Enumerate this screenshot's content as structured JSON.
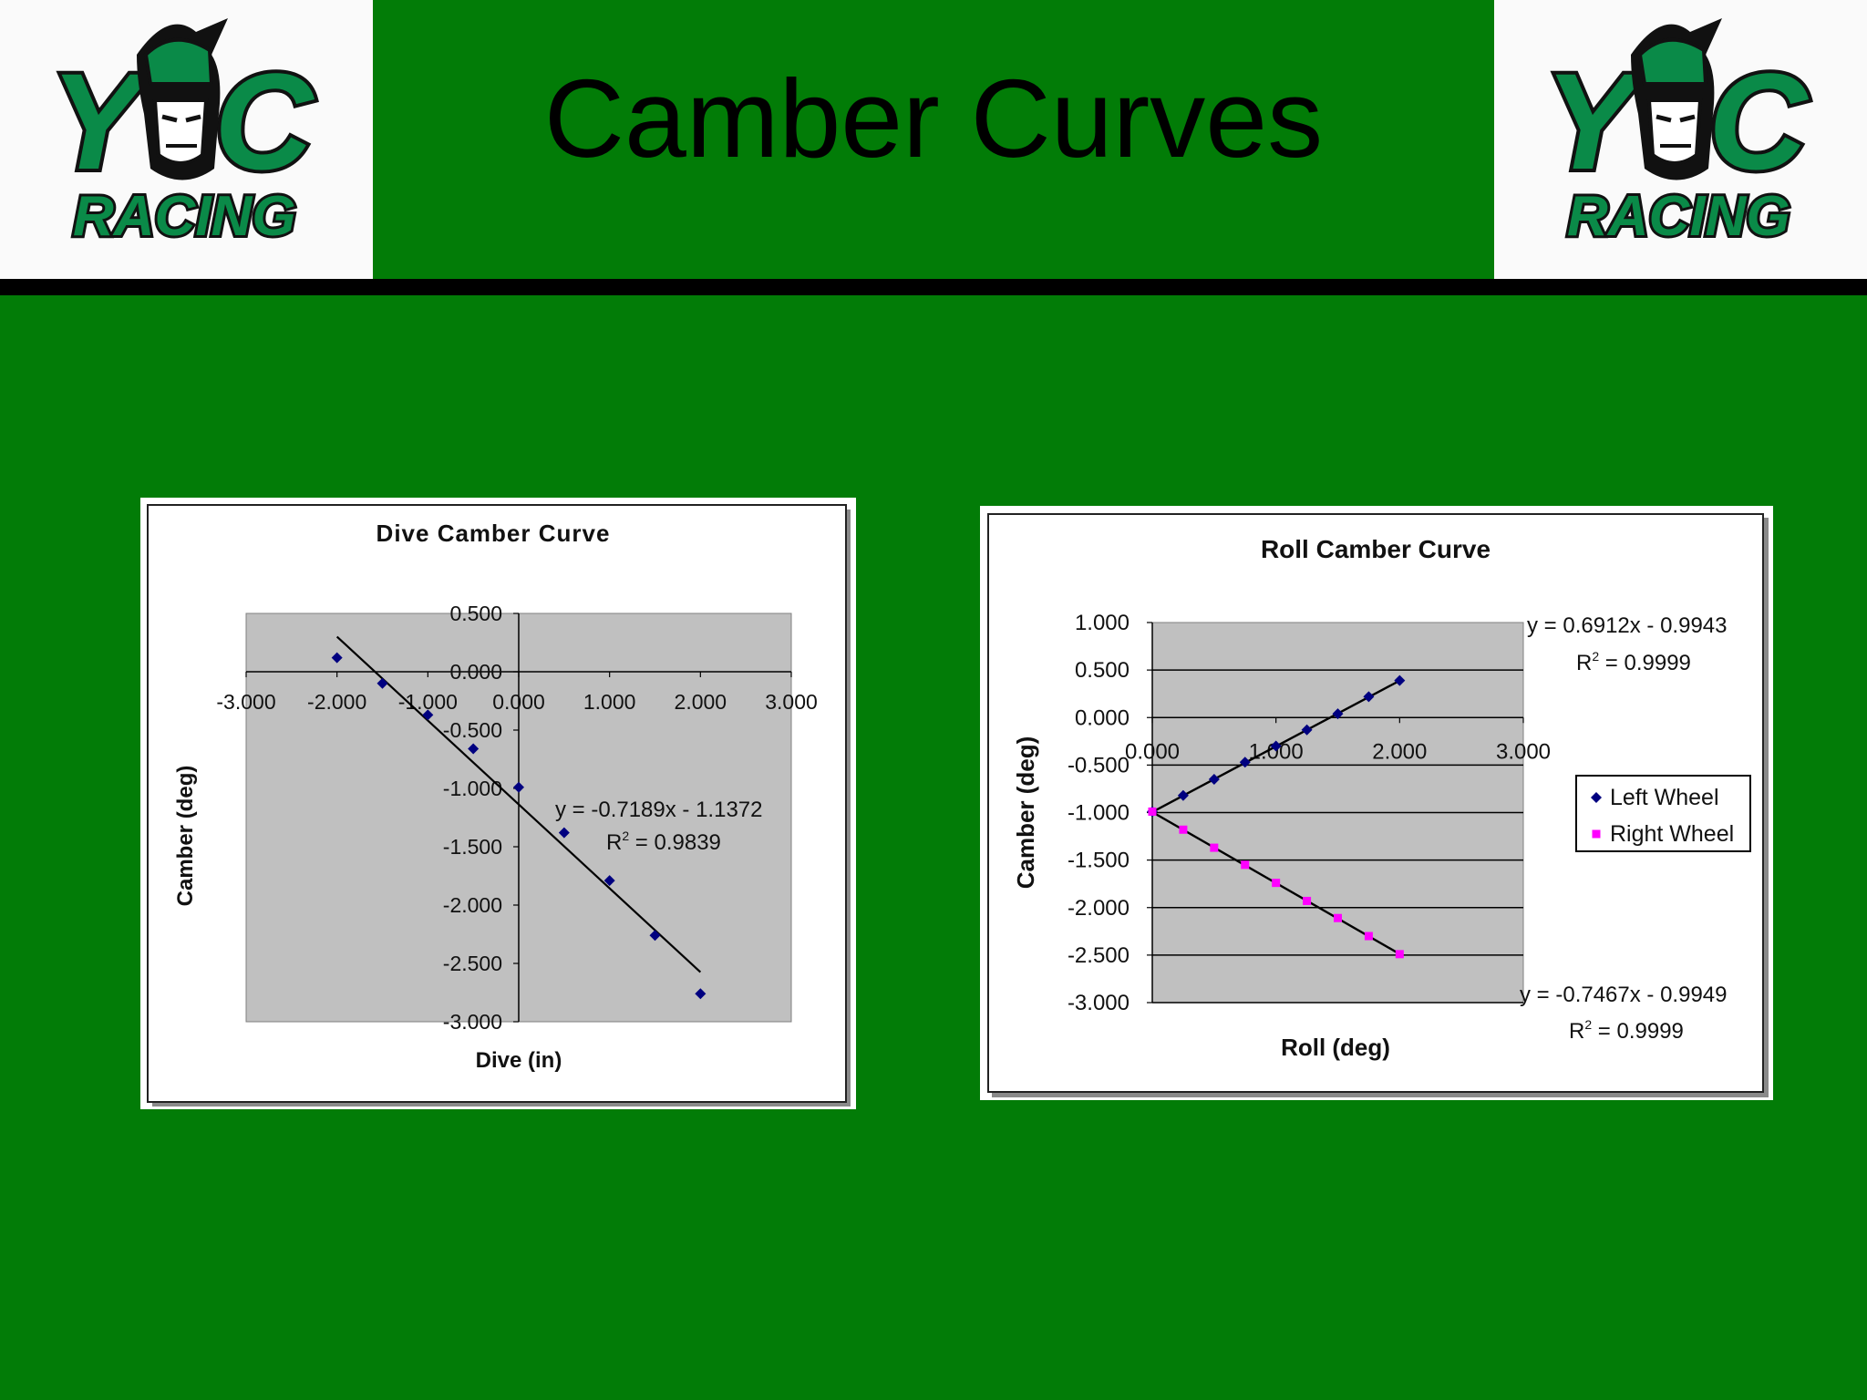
{
  "slide": {
    "title": "Camber Curves",
    "logo_left_text": [
      "Y",
      "C",
      "RACING"
    ],
    "logo_right_text": [
      "Y",
      "C",
      "RACING"
    ]
  },
  "colors": {
    "background": "#027C07",
    "logo_green": "#0A8A48",
    "plot_area": "#C0C0C0",
    "left_wheel": "#000080",
    "right_wheel": "#FF00FF"
  },
  "chart_data": [
    {
      "type": "scatter",
      "title": "Dive Camber Curve",
      "xlabel": "Dive (in)",
      "ylabel": "Camber (deg)",
      "xlim": [
        -3,
        3
      ],
      "ylim": [
        -3,
        0.5
      ],
      "x_ticks": [
        "-3.000",
        "-2.000",
        "-1.000",
        "0.000",
        "1.000",
        "2.000",
        "3.000"
      ],
      "y_ticks": [
        "0.500",
        "0.000",
        "-0.500",
        "-1.000",
        "-1.500",
        "-2.000",
        "-2.500",
        "-3.000"
      ],
      "grid": false,
      "series": [
        {
          "x": [
            -2.0,
            -1.5,
            -1.0,
            -0.5,
            0.0,
            0.5,
            1.0,
            1.5,
            2.0
          ],
          "y": [
            0.12,
            -0.1,
            -0.37,
            -0.66,
            -0.99,
            -1.38,
            -1.79,
            -2.26,
            -2.76
          ]
        }
      ],
      "trendline": {
        "slope": -0.7189,
        "intercept": -1.1372,
        "x_range": [
          -2.0,
          2.0
        ]
      },
      "annotation": {
        "equation": "y = -0.7189x - 1.1372",
        "r2_prefix": "R",
        "r2_sup": "2",
        "r2_value": " = 0.9839"
      }
    },
    {
      "type": "scatter",
      "title": "Roll Camber Curve",
      "xlabel": "Roll (deg)",
      "ylabel": "Camber (deg)",
      "xlim": [
        0,
        3
      ],
      "ylim": [
        -3,
        1
      ],
      "x_ticks": [
        "0.000",
        "1.000",
        "2.000",
        "3.000"
      ],
      "y_ticks": [
        "1.000",
        "0.500",
        "0.000",
        "-0.500",
        "-1.000",
        "-1.500",
        "-2.000",
        "-2.500",
        "-3.000"
      ],
      "grid": true,
      "legend_position": "right",
      "series": [
        {
          "name": "Left Wheel",
          "marker": "diamond",
          "x": [
            0.0,
            0.25,
            0.5,
            0.75,
            1.0,
            1.25,
            1.5,
            1.75,
            2.0
          ],
          "y": [
            -0.99,
            -0.82,
            -0.65,
            -0.47,
            -0.3,
            -0.13,
            0.04,
            0.22,
            0.39
          ],
          "trendline": {
            "slope": 0.6912,
            "intercept": -0.9943,
            "x_range": [
              0,
              2
            ]
          },
          "annotation": {
            "equation": "y = 0.6912x - 0.9943",
            "r2_prefix": "R",
            "r2_sup": "2",
            "r2_value": " = 0.9999"
          }
        },
        {
          "name": "Right Wheel",
          "marker": "square",
          "x": [
            0.0,
            0.25,
            0.5,
            0.75,
            1.0,
            1.25,
            1.5,
            1.75,
            2.0
          ],
          "y": [
            -0.99,
            -1.18,
            -1.37,
            -1.55,
            -1.74,
            -1.93,
            -2.11,
            -2.3,
            -2.49
          ],
          "trendline": {
            "slope": -0.7467,
            "intercept": -0.9949,
            "x_range": [
              0,
              2
            ]
          },
          "annotation": {
            "equation": "y = -0.7467x - 0.9949",
            "r2_prefix": "R",
            "r2_sup": "2",
            "r2_value": " = 0.9999"
          }
        }
      ]
    }
  ]
}
